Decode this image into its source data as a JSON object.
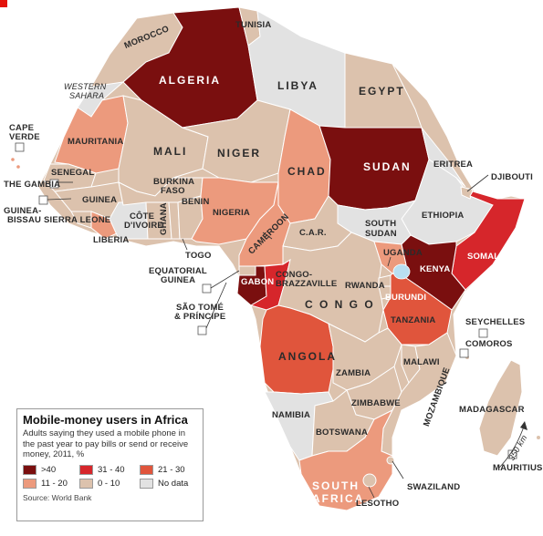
{
  "legend": {
    "title": "Mobile-money users in Africa",
    "subtitle": "Adults saying they used a mobile phone in the past year to pay bills or send or receive money, 2011, %",
    "source": "Source: World Bank",
    "items": [
      {
        "label": ">40",
        "color": "#7a0f0f"
      },
      {
        "label": "31 - 40",
        "color": "#d6262b"
      },
      {
        "label": "21 - 30",
        "color": "#e0553c"
      },
      {
        "label": "11 - 20",
        "color": "#ec9a7d"
      },
      {
        "label": "0 - 10",
        "color": "#dcc2ad"
      },
      {
        "label": "No data",
        "color": "#e2e2e2"
      }
    ]
  },
  "colors": {
    "gt40": "#7a0f0f",
    "c31_40": "#d6262b",
    "c21_30": "#e0553c",
    "c11_20": "#ec9a7d",
    "c0_10": "#dcc2ad",
    "nodata": "#e2e2e2",
    "lake": "#b9dff2"
  },
  "countries": {
    "algeria": ">40",
    "sudan": ">40",
    "kenya": ">40",
    "gabon": ">40",
    "somalia": "31 - 40",
    "congo_brazzaville": "31 - 40",
    "angola": "21 - 30",
    "tanzania": "21 - 30",
    "mauritania": "11 - 20",
    "chad": "11 - 20",
    "nigeria": "11 - 20",
    "south_africa": "11 - 20",
    "cameroon": "11 - 20",
    "uganda": "11 - 20",
    "libya": "No data",
    "ethiopia": "No data",
    "south_sudan": "No data",
    "eritrea": "No data",
    "western_sahara": "No data"
  },
  "labels": {
    "tunisia": "TUNISIA",
    "morocco": "MOROCCO",
    "algeria": "ALGERIA",
    "libya": "LIBYA",
    "egypt": "EGYPT",
    "western_sahara_1": "WESTERN",
    "western_sahara_2": "SAHARA",
    "cape_verde_1": "CAPE",
    "cape_verde_2": "VERDE",
    "mauritania": "MAURITANIA",
    "mali": "MALI",
    "niger": "NIGER",
    "chad": "CHAD",
    "sudan": "SUDAN",
    "eritrea": "ERITREA",
    "djibouti": "DJIBOUTI",
    "senegal": "SENEGAL",
    "gambia": "THE GAMBIA",
    "guinea_bissau_1": "GUINEA-",
    "guinea_bissau_2": "BISSAU",
    "guinea": "GUINEA",
    "burkina_1": "BURKINA",
    "burkina_2": "FASO",
    "benin": "BENIN",
    "nigeria": "NIGERIA",
    "ethiopia": "ETHIOPIA",
    "south_sudan_1": "SOUTH",
    "south_sudan_2": "SUDAN",
    "sierra_leone": "SIERRA LEONE",
    "cote_1": "CÔTE",
    "cote_2": "D'IVOIRE",
    "ghana": "GHANA",
    "liberia": "LIBERIA",
    "togo": "TOGO",
    "cameroon": "CAMEROON",
    "car": "C.A.R.",
    "uganda": "UGANDA",
    "kenya": "KENYA",
    "somalia": "SOMALIA",
    "eq_guinea_1": "EQUATORIAL",
    "eq_guinea_2": "GUINEA",
    "gabon": "GABON",
    "congo_b_1": "CONGO-",
    "congo_b_2": "BRAZZAVILLE",
    "rwanda": "RWANDA",
    "burundi": "BURUNDI",
    "congo": "C O N G O",
    "sao_tome_1": "SÃO TOMÉ",
    "sao_tome_2": "& PRÍNCIPE",
    "tanzania": "TANZANIA",
    "seychelles": "SEYCHELLES",
    "comoros": "COMOROS",
    "angola": "ANGOLA",
    "malawi": "MALAWI",
    "zambia": "ZAMBIA",
    "madagascar": "MADAGASCAR",
    "mozambique": "MOZAMBIQUE",
    "zimbabwe": "ZIMBABWE",
    "namibia": "NAMIBIA",
    "botswana": "BOTSWANA",
    "swaziland": "SWAZILAND",
    "mauritius": "MAURITIUS",
    "south_africa_1": "SOUTH",
    "south_africa_2": "AFRICA",
    "lesotho": "LESOTHO",
    "scale": "350 km"
  }
}
